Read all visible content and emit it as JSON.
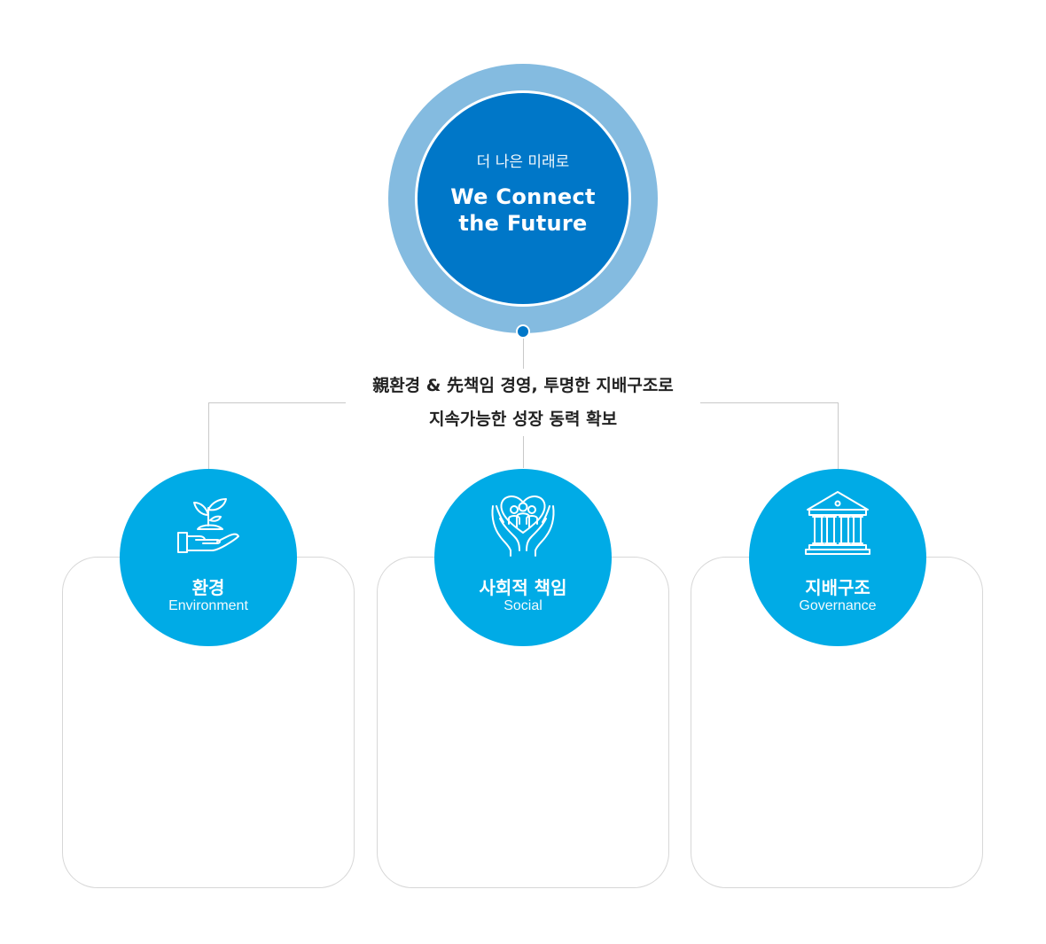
{
  "hero": {
    "subtitle": "더 나은 미래로",
    "title_line1": "We Connect",
    "title_line2": "the Future"
  },
  "summary": {
    "line1": "親환경 & 先책임 경영, 투명한 지배구조로",
    "line2": "지속가능한 성장 동력 확보"
  },
  "pillars": [
    {
      "title": "환경",
      "subtitle": "Environment",
      "icon": "plant-in-hand-icon"
    },
    {
      "title": "사회적 책임",
      "subtitle": "Social",
      "icon": "hands-heart-people-icon"
    },
    {
      "title": "지배구조",
      "subtitle": "Governance",
      "icon": "institution-building-icon"
    }
  ],
  "colors": {
    "hero_outer": "#84bbe0",
    "hero_inner": "#0077c8",
    "pillar": "#00abe6",
    "line": "#c9c9c9",
    "card_border": "#d7d7d7"
  }
}
